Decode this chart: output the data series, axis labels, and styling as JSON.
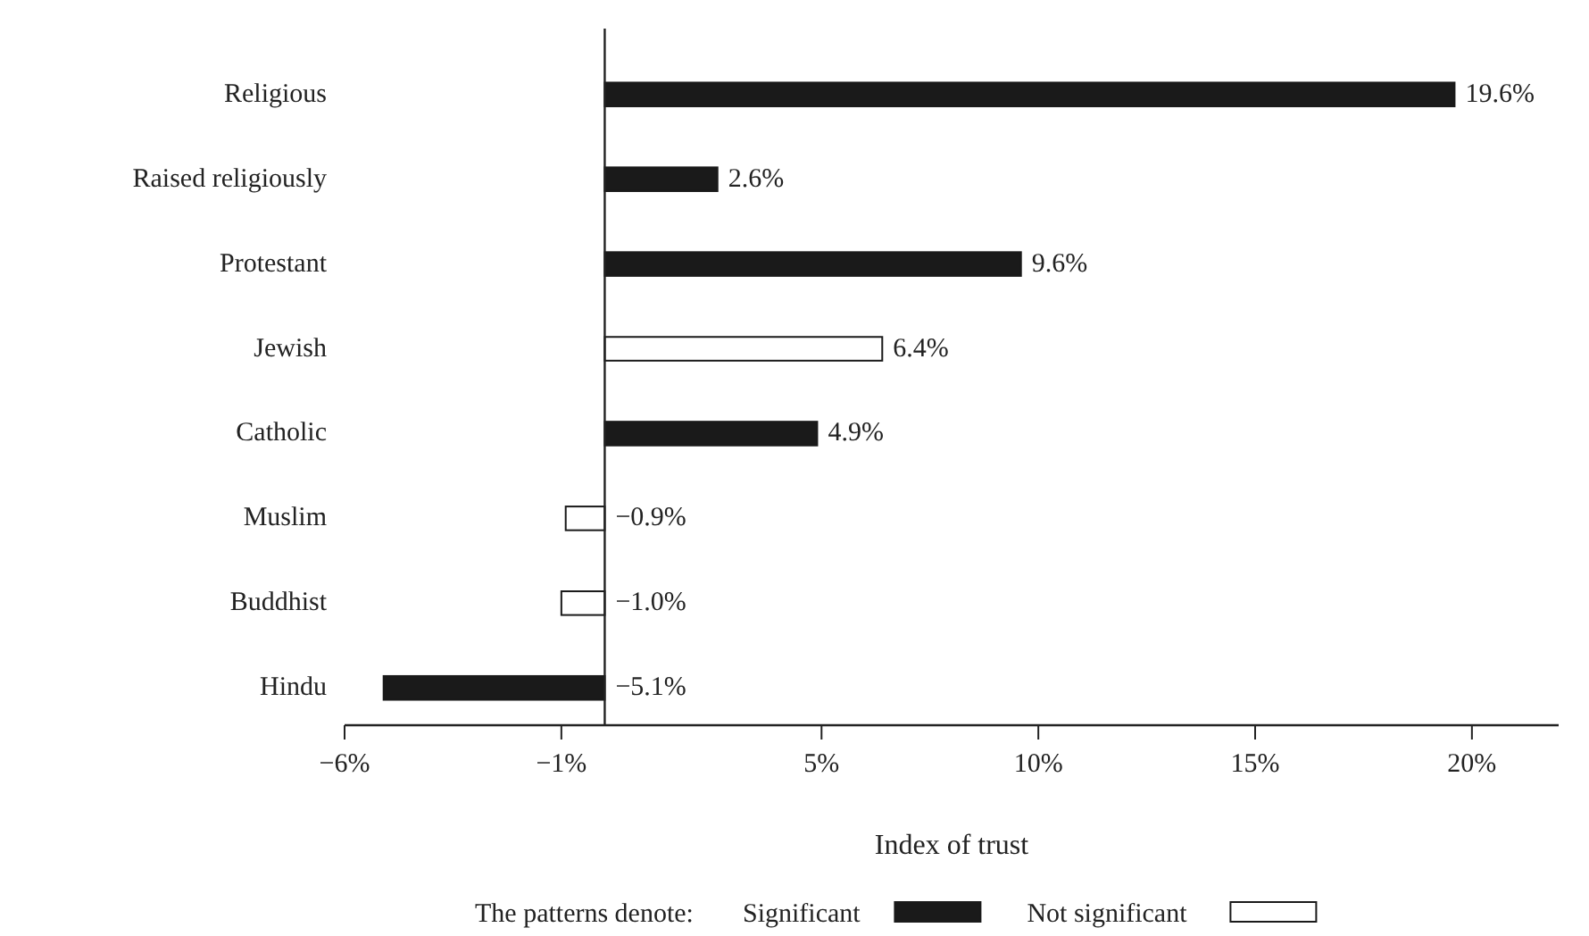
{
  "chart_data": {
    "type": "bar",
    "orientation": "horizontal",
    "xlabel": "Index of trust",
    "legend_title": "The patterns denote:",
    "legend": "bottom",
    "categories": [
      "Religious",
      "Raised religiously",
      "Protestant",
      "Jewish",
      "Catholic",
      "Muslim",
      "Buddhist",
      "Hindu"
    ],
    "series": [
      {
        "name": "Significant",
        "color": "#1a1a1a",
        "values": [
          19.6,
          2.6,
          9.6,
          null,
          4.9,
          null,
          null,
          -5.1
        ],
        "value_labels": [
          "19.6%",
          "2.6%",
          "9.6%",
          null,
          "4.9%",
          null,
          null,
          "−5.1%"
        ]
      },
      {
        "name": "Not significant",
        "color": "#ffffff",
        "values": [
          null,
          null,
          null,
          6.4,
          null,
          -0.9,
          -1.0,
          null
        ],
        "value_labels": [
          null,
          null,
          null,
          "6.4%",
          null,
          "−0.9%",
          "−1.0%",
          null
        ]
      }
    ],
    "xlim": [
      -6,
      22
    ],
    "xticks": [
      {
        "value": -6,
        "label": "−6%"
      },
      {
        "value": -1,
        "label": "−1%"
      },
      {
        "value": 5,
        "label": "5%"
      },
      {
        "value": 10,
        "label": "10%"
      },
      {
        "value": 15,
        "label": "15%"
      },
      {
        "value": 20,
        "label": "20%"
      }
    ]
  }
}
